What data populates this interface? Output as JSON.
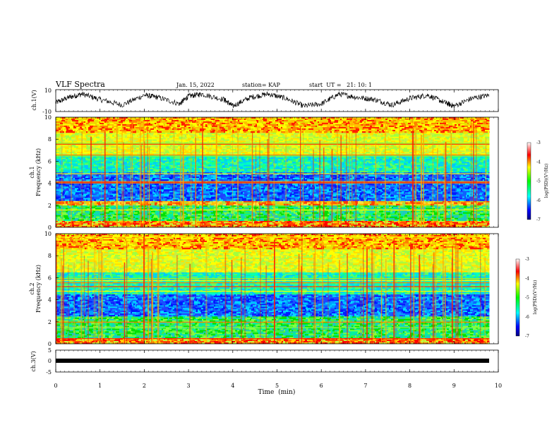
{
  "header": {
    "title": "VLF Spectra",
    "date": "Jan. 15, 2022",
    "station": "station= KAP",
    "start": "start  UT =   21: 10: 1"
  },
  "chart_data": [
    {
      "type": "line",
      "name": "ch1-waveform",
      "ylabel": "ch.1(V)",
      "ylim": [
        -10,
        10
      ],
      "yticks": [
        "10",
        "-10"
      ],
      "x_range_min": [
        0,
        9.8
      ],
      "description_points": [
        [
          0.0,
          -2
        ],
        [
          0.3,
          3
        ],
        [
          0.6,
          6
        ],
        [
          1.0,
          1
        ],
        [
          1.5,
          -4
        ],
        [
          2.0,
          5
        ],
        [
          2.3,
          3
        ],
        [
          2.8,
          -3
        ],
        [
          3.0,
          4
        ],
        [
          3.3,
          6
        ],
        [
          3.8,
          1
        ],
        [
          4.0,
          -5
        ],
        [
          4.4,
          3
        ],
        [
          4.8,
          6
        ],
        [
          5.2,
          2
        ],
        [
          5.6,
          -5
        ],
        [
          6.0,
          -3
        ],
        [
          6.4,
          6
        ],
        [
          6.8,
          3
        ],
        [
          7.2,
          1
        ],
        [
          7.6,
          -4
        ],
        [
          8.0,
          2
        ],
        [
          8.4,
          5
        ],
        [
          8.8,
          -2
        ],
        [
          9.0,
          -5
        ],
        [
          9.4,
          2
        ],
        [
          9.8,
          5
        ]
      ]
    },
    {
      "type": "heatmap",
      "name": "ch1-spectrogram",
      "ylabel": "Frequency (kHz)",
      "channel_label": "ch.1",
      "xlim": [
        0,
        10
      ],
      "ylim": [
        0,
        10
      ],
      "yticks": [
        "0",
        "2",
        "4",
        "6",
        "8",
        "10"
      ],
      "colorbar": {
        "label": "log(PSD)(V²/Hz)",
        "range": [
          -7,
          -3
        ],
        "ticks": [
          "-3",
          "-4",
          "-5",
          "-6",
          "-7"
        ]
      },
      "bands_khz": [
        {
          "low": 0,
          "high": 0.6,
          "level": "orange-red"
        },
        {
          "low": 0.6,
          "high": 2.0,
          "level": "green"
        },
        {
          "low": 2.0,
          "high": 2.4,
          "level": "orange"
        },
        {
          "low": 2.4,
          "high": 5.0,
          "level": "blue"
        },
        {
          "low": 5.0,
          "high": 6.6,
          "level": "green-cyan"
        },
        {
          "low": 6.6,
          "high": 8.6,
          "level": "yellow"
        },
        {
          "low": 8.6,
          "high": 10,
          "level": "yellow-red"
        }
      ]
    },
    {
      "type": "heatmap",
      "name": "ch2-spectrogram",
      "ylabel": "Frequency (kHz)",
      "channel_label": "ch.2",
      "xlim": [
        0,
        10
      ],
      "ylim": [
        0,
        10
      ],
      "yticks": [
        "0",
        "2",
        "4",
        "6",
        "8",
        "10"
      ],
      "colorbar": {
        "label": "log(PSD)(V²/Hz)",
        "range": [
          -7,
          -3
        ],
        "ticks": [
          "-3",
          "-4",
          "-5",
          "-6",
          "-7"
        ]
      },
      "bands_khz": [
        {
          "low": 0,
          "high": 0.5,
          "level": "orange-red"
        },
        {
          "low": 0.5,
          "high": 2.5,
          "level": "green"
        },
        {
          "low": 2.5,
          "high": 4.5,
          "level": "blue"
        },
        {
          "low": 4.5,
          "high": 6.5,
          "level": "green-cyan"
        },
        {
          "low": 6.5,
          "high": 8.6,
          "level": "yellow"
        },
        {
          "low": 8.6,
          "high": 10,
          "level": "yellow-red"
        }
      ]
    },
    {
      "type": "line",
      "name": "ch3-flat",
      "ylabel": "ch.3(V)",
      "ylim": [
        -5,
        5
      ],
      "yticks": [
        "5",
        "0",
        "-5"
      ],
      "value": 0,
      "x_range": [
        0,
        9.8
      ]
    }
  ],
  "xaxis": {
    "label": "Time  (min)",
    "ticks": [
      "0",
      "1",
      "2",
      "3",
      "4",
      "5",
      "6",
      "7",
      "8",
      "9",
      "10"
    ],
    "range": [
      0,
      10
    ]
  },
  "colors": {
    "ch1_trace": "#000000",
    "ch3_trace": "#000000"
  }
}
